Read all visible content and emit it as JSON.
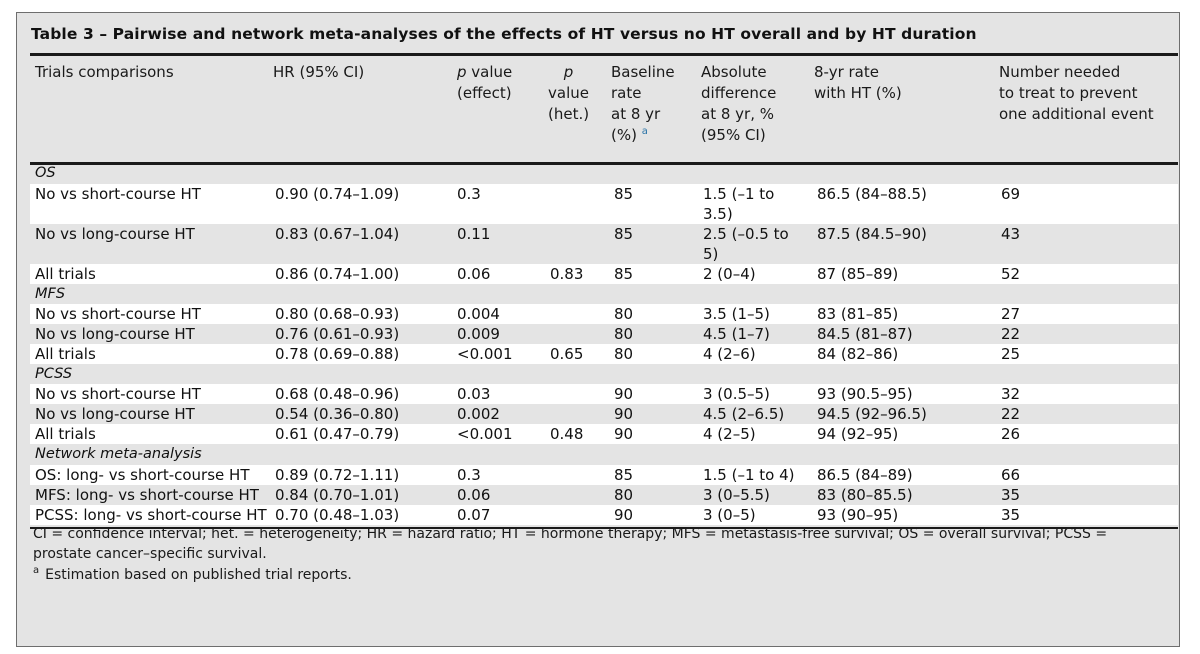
{
  "table": {
    "title": "Table 3 – Pairwise and network meta-analyses of the effects of HT versus no HT overall and by HT duration",
    "headers": {
      "trials": "Trials comparisons",
      "hr": "HR (95% CI)",
      "p_effect_p": "p",
      "p_effect_rest": " value",
      "p_effect_sub": "(effect)",
      "p_het_p": "p",
      "p_het_rest": "value",
      "p_het_sub": "(het.)",
      "baseline_l1": "Baseline",
      "baseline_l2": "rate",
      "baseline_l3": "at 8 yr",
      "baseline_l4": "(%)",
      "baseline_sup": "a",
      "absdiff_l1": "Absolute",
      "absdiff_l2": "difference",
      "absdiff_l3": "at 8 yr, %",
      "absdiff_l4": "(95% CI)",
      "rate_l1": "8-yr rate",
      "rate_l2": "with HT (%)",
      "nnt_l1": "Number needed",
      "nnt_l2": "to treat to prevent",
      "nnt_l3": "one additional event"
    },
    "sections": [
      {
        "label": "OS",
        "rows": [
          {
            "trial": "No vs short-course HT",
            "hr": "0.90 (0.74–1.09)",
            "p_effect": "0.3",
            "p_het": "",
            "baseline": "85",
            "absdiff": "1.5 (–1 to 3.5)",
            "rate": "86.5 (84–88.5)",
            "nnt": "69"
          },
          {
            "trial": "No vs long-course HT",
            "hr": "0.83 (0.67–1.04)",
            "p_effect": "0.11",
            "p_het": "",
            "baseline": "85",
            "absdiff": "2.5 (–0.5 to 5)",
            "rate": "87.5 (84.5–90)",
            "nnt": "43"
          },
          {
            "trial": "All trials",
            "hr": "0.86 (0.74–1.00)",
            "p_effect": "0.06",
            "p_het": "0.83",
            "baseline": "85",
            "absdiff": "2 (0–4)",
            "rate": "87 (85–89)",
            "nnt": "52"
          }
        ]
      },
      {
        "label": "MFS",
        "rows": [
          {
            "trial": "No vs short-course HT",
            "hr": "0.80 (0.68–0.93)",
            "p_effect": "0.004",
            "p_het": "",
            "baseline": "80",
            "absdiff": "3.5 (1–5)",
            "rate": "83 (81–85)",
            "nnt": "27"
          },
          {
            "trial": "No vs long-course HT",
            "hr": "0.76 (0.61–0.93)",
            "p_effect": "0.009",
            "p_het": "",
            "baseline": "80",
            "absdiff": "4.5 (1–7)",
            "rate": "84.5 (81–87)",
            "nnt": "22"
          },
          {
            "trial": "All trials",
            "hr": "0.78 (0.69–0.88)",
            "p_effect": "<0.001",
            "p_het": "0.65",
            "baseline": "80",
            "absdiff": "4 (2–6)",
            "rate": "84 (82–86)",
            "nnt": "25"
          }
        ]
      },
      {
        "label": "PCSS",
        "rows": [
          {
            "trial": "No vs short-course HT",
            "hr": "0.68 (0.48–0.96)",
            "p_effect": "0.03",
            "p_het": "",
            "baseline": "90",
            "absdiff": "3 (0.5–5)",
            "rate": "93 (90.5–95)",
            "nnt": "32"
          },
          {
            "trial": "No vs long-course HT",
            "hr": "0.54 (0.36–0.80)",
            "p_effect": "0.002",
            "p_het": "",
            "baseline": "90",
            "absdiff": "4.5 (2–6.5)",
            "rate": "94.5 (92–96.5)",
            "nnt": "22"
          },
          {
            "trial": "All trials",
            "hr": "0.61 (0.47–0.79)",
            "p_effect": "<0.001",
            "p_het": "0.48",
            "baseline": "90",
            "absdiff": "4 (2–5)",
            "rate": "94 (92–95)",
            "nnt": "26"
          }
        ]
      },
      {
        "label": "Network meta-analysis",
        "rows": [
          {
            "trial": "OS: long- vs short-course HT",
            "hr": "0.89 (0.72–1.11)",
            "p_effect": "0.3",
            "p_het": "",
            "baseline": "85",
            "absdiff": "1.5 (–1 to 4)",
            "rate": "86.5 (84–89)",
            "nnt": "66"
          },
          {
            "trial": "MFS: long- vs short-course HT",
            "hr": "0.84 (0.70–1.01)",
            "p_effect": "0.06",
            "p_het": "",
            "baseline": "80",
            "absdiff": "3 (0–5.5)",
            "rate": "83 (80–85.5)",
            "nnt": "35"
          },
          {
            "trial": "PCSS: long- vs short-course HT",
            "hr": "0.70 (0.48–1.03)",
            "p_effect": "0.07",
            "p_het": "",
            "baseline": "90",
            "absdiff": "3 (0–5)",
            "rate": "93 (90–95)",
            "nnt": "35"
          }
        ]
      }
    ],
    "footnote_abbrev": "CI = confidence interval; het. = heterogeneity; HR = hazard ratio; HT = hormone therapy; MFS = metastasis-free survival; OS = overall survival; PCSS = prostate cancer–specific survival.",
    "footnote_a_mark": "a",
    "footnote_a_text": "Estimation based on published trial reports."
  }
}
